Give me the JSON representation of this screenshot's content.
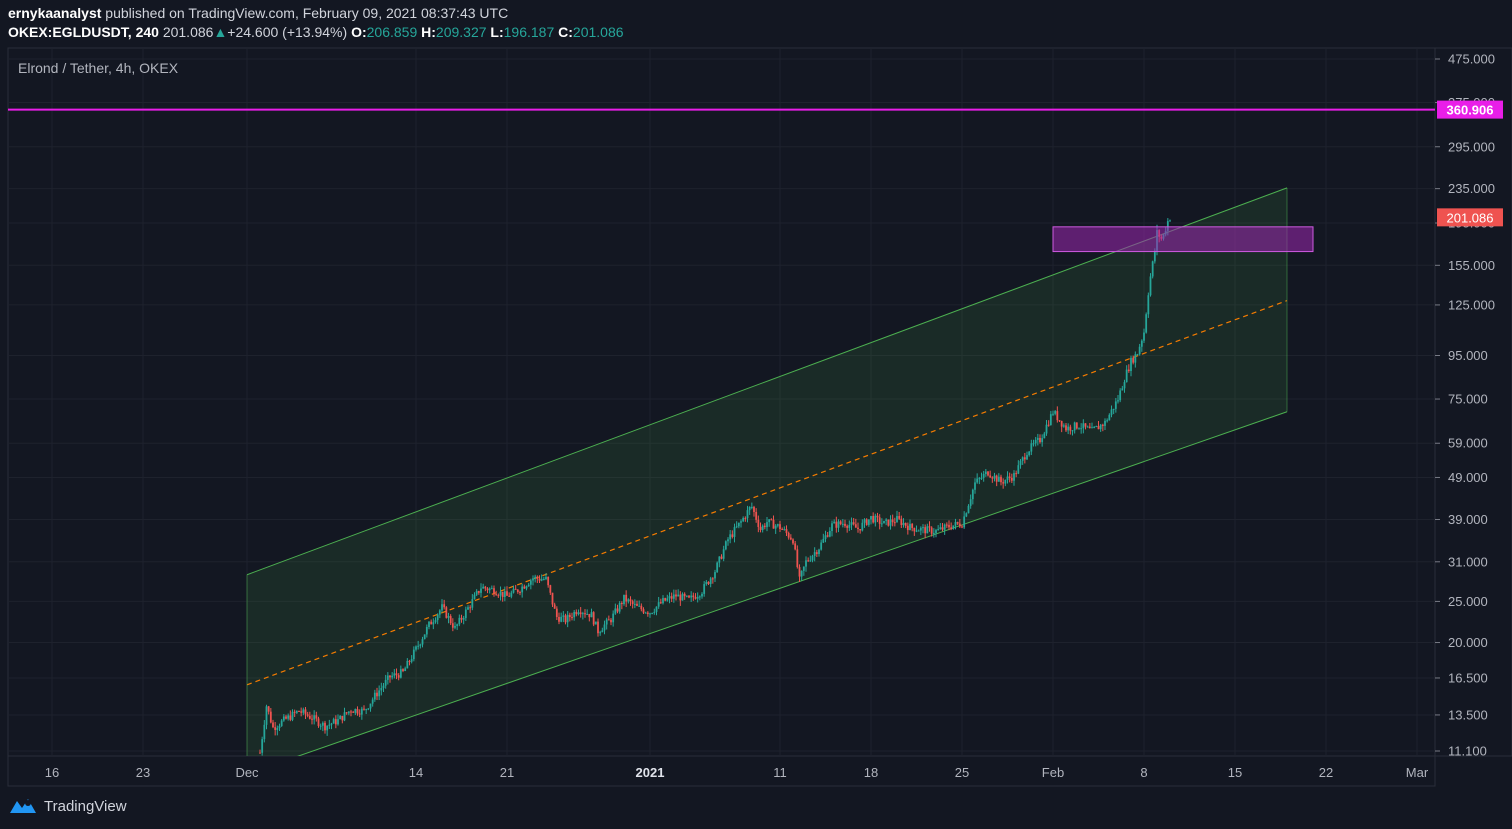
{
  "header": {
    "author": "ernykaanalyst",
    "published_text": "published on TradingView.com, February 09, 2021 08:37:43 UTC",
    "symbol": "OKEX:EGLDUSDT, 240",
    "last": "201.086",
    "change": "+24.600 (+13.94%)",
    "o_label": "O:",
    "o_value": "206.859",
    "h_label": "H:",
    "h_value": "209.327",
    "l_label": "L:",
    "l_value": "196.187",
    "c_label": "C:",
    "c_value": "201.086"
  },
  "footer": {
    "brand": "TradingView"
  },
  "colors": {
    "background": "#131722",
    "up": "#26a69a",
    "down": "#ef5350",
    "channel": "#4caf50",
    "resistance": "#e91ee8",
    "zone": "#9c27b0",
    "midline": "#f57c00",
    "last_price": "#ef5350"
  },
  "chart_data": {
    "type": "candlestick",
    "title": "Elrond / Tether, 4h, OKEX",
    "y_scale": "log",
    "ylim": [
      11.1,
      475
    ],
    "y_ticks": [
      "475.000",
      "375.000",
      "295.000",
      "235.000",
      "195.000",
      "155.000",
      "125.000",
      "95.000",
      "75.000",
      "59.000",
      "49.000",
      "39.000",
      "31.000",
      "25.000",
      "20.000",
      "16.500",
      "13.500",
      "11.100"
    ],
    "x_ticks": [
      {
        "label": "16",
        "day": -15,
        "bold": false
      },
      {
        "label": "23",
        "day": -8,
        "bold": false
      },
      {
        "label": "Dec",
        "day": 0,
        "bold": false
      },
      {
        "label": "14",
        "day": 13,
        "bold": false
      },
      {
        "label": "21",
        "day": 20,
        "bold": false
      },
      {
        "label": "2021",
        "day": 31,
        "bold": true
      },
      {
        "label": "11",
        "day": 41,
        "bold": false
      },
      {
        "label": "18",
        "day": 48,
        "bold": false
      },
      {
        "label": "25",
        "day": 55,
        "bold": false
      },
      {
        "label": "Feb",
        "day": 62,
        "bold": false
      },
      {
        "label": "8",
        "day": 69,
        "bold": false
      },
      {
        "label": "15",
        "day": 76,
        "bold": false
      },
      {
        "label": "22",
        "day": 83,
        "bold": false
      },
      {
        "label": "Mar",
        "day": 90,
        "bold": false
      }
    ],
    "resistance_line": {
      "price": 360.906,
      "label": "360.906"
    },
    "last_price": {
      "price": 201.086,
      "label": "201.086"
    },
    "zone": {
      "day_start": 62,
      "day_end": 82,
      "price_low": 167,
      "price_high": 191
    },
    "channel": {
      "day_start": 0,
      "day_end": 80,
      "upper": [
        28.9,
        236
      ],
      "middle": [
        15.9,
        128
      ],
      "lower": [
        9.8,
        70
      ]
    },
    "price_path": [
      [
        1,
        11.0
      ],
      [
        1.5,
        14.2
      ],
      [
        2,
        12.6
      ],
      [
        3,
        13.2
      ],
      [
        4,
        13.8
      ],
      [
        5,
        13.3
      ],
      [
        6,
        12.7
      ],
      [
        7,
        13.1
      ],
      [
        8,
        13.9
      ],
      [
        9,
        13.8
      ],
      [
        10,
        15.2
      ],
      [
        11,
        16.6
      ],
      [
        12,
        17.0
      ],
      [
        13,
        19.3
      ],
      [
        14,
        22.0
      ],
      [
        15,
        24.2
      ],
      [
        16,
        21.6
      ],
      [
        17,
        24.1
      ],
      [
        18,
        27.0
      ],
      [
        19,
        26.6
      ],
      [
        20,
        25.7
      ],
      [
        21,
        26.8
      ],
      [
        22,
        28.4
      ],
      [
        23,
        28.2
      ],
      [
        23.8,
        23.0
      ],
      [
        24.5,
        22.6
      ],
      [
        25.5,
        24.0
      ],
      [
        26.5,
        23.2
      ],
      [
        27,
        21.3
      ],
      [
        28,
        22.7
      ],
      [
        29,
        25.4
      ],
      [
        30,
        24.2
      ],
      [
        31,
        23.6
      ],
      [
        32,
        25.0
      ],
      [
        33,
        25.8
      ],
      [
        34,
        25.2
      ],
      [
        35,
        26.5
      ],
      [
        36,
        29.5
      ],
      [
        37,
        35.0
      ],
      [
        38,
        38.5
      ],
      [
        38.8,
        42.0
      ],
      [
        39.5,
        37.0
      ],
      [
        40,
        38.5
      ],
      [
        41,
        37.4
      ],
      [
        42,
        35.0
      ],
      [
        42.5,
        28.0
      ],
      [
        43,
        31.0
      ],
      [
        44,
        33.5
      ],
      [
        45,
        37.8
      ],
      [
        46,
        38.3
      ],
      [
        47,
        37.1
      ],
      [
        48,
        39.4
      ],
      [
        49,
        38.1
      ],
      [
        50,
        39.0
      ],
      [
        51,
        37.4
      ],
      [
        52,
        36.9
      ],
      [
        53,
        36.6
      ],
      [
        54,
        37.6
      ],
      [
        55,
        38.2
      ],
      [
        56,
        47.5
      ],
      [
        57,
        50.5
      ],
      [
        58,
        47.8
      ],
      [
        59,
        49.5
      ],
      [
        60,
        56.5
      ],
      [
        61,
        60.2
      ],
      [
        62,
        70.0
      ],
      [
        63,
        64.0
      ],
      [
        64,
        65.0
      ],
      [
        65,
        63.0
      ],
      [
        66,
        66.0
      ],
      [
        67,
        75.0
      ],
      [
        67.5,
        84.0
      ],
      [
        68,
        92.0
      ],
      [
        68.5,
        96.5
      ],
      [
        69,
        108.0
      ],
      [
        69.4,
        140.0
      ],
      [
        69.8,
        165.0
      ],
      [
        70,
        185.0
      ],
      [
        70.4,
        178.0
      ],
      [
        70.8,
        196.0
      ],
      [
        71,
        201.0
      ]
    ]
  }
}
